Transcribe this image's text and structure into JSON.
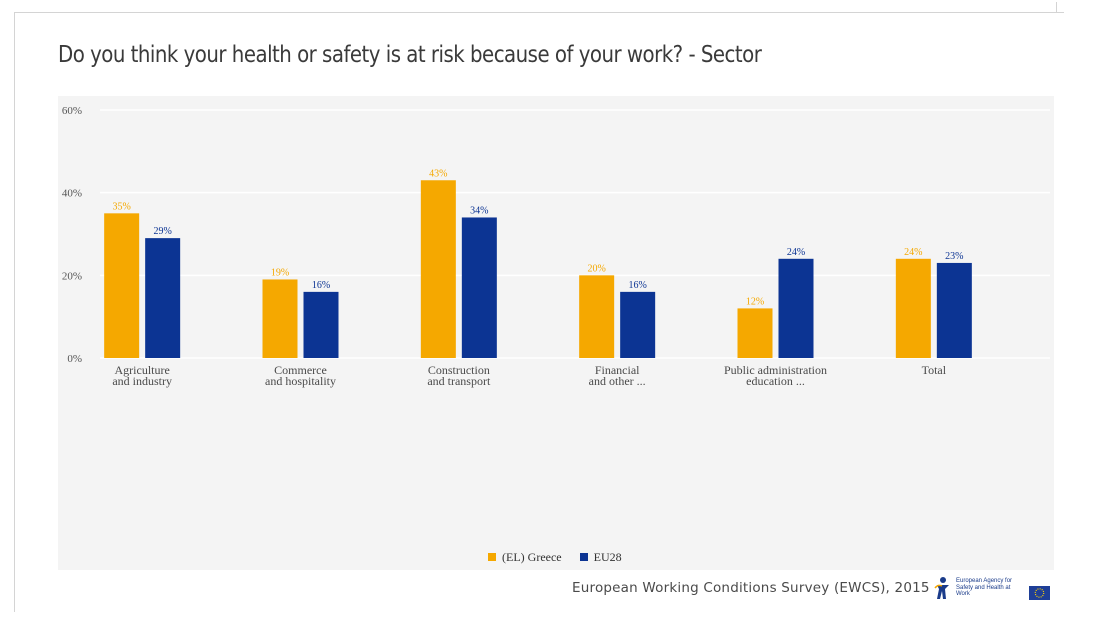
{
  "title": "Do you think your health or safety is at risk because of your work? - Sector",
  "source": "European Working Conditions Survey (EWCS), 2015",
  "agency_logo": {
    "icon": "osha-figure-icon",
    "text": "European Agency for Safety and Health at Work"
  },
  "colors": {
    "greece": "#f5a800",
    "eu28": "#0c3493",
    "plot_bg": "#f4f4f4",
    "grid": "#ffffff"
  },
  "legend": [
    {
      "name": "(EL) Greece",
      "color": "#f5a800"
    },
    {
      "name": "EU28",
      "color": "#0c3493"
    }
  ],
  "chart_data": {
    "type": "bar",
    "title": "Do you think your health or safety is at risk because of your work? - Sector",
    "xlabel": "",
    "ylabel": "",
    "ylim": [
      0,
      60
    ],
    "yticks": [
      "0%",
      "20%",
      "40%",
      "60%"
    ],
    "ytick_values": [
      0,
      20,
      40,
      60
    ],
    "grid": true,
    "legend_position": "bottom",
    "categories": [
      [
        "Agriculture",
        "and industry"
      ],
      [
        "Commerce",
        "and hospitality"
      ],
      [
        "Construction",
        "and transport"
      ],
      [
        "Financial",
        "and other ..."
      ],
      [
        "Public administration",
        "education ..."
      ],
      [
        "Total"
      ]
    ],
    "series": [
      {
        "name": "(EL) Greece",
        "color": "#f5a800",
        "values": [
          35,
          19,
          43,
          20,
          12,
          24
        ],
        "labels": [
          "35%",
          "19%",
          "43%",
          "20%",
          "12%",
          "24%"
        ]
      },
      {
        "name": "EU28",
        "color": "#0c3493",
        "values": [
          29,
          16,
          34,
          16,
          24,
          23
        ],
        "labels": [
          "29%",
          "16%",
          "34%",
          "16%",
          "24%",
          "23%"
        ]
      }
    ]
  }
}
